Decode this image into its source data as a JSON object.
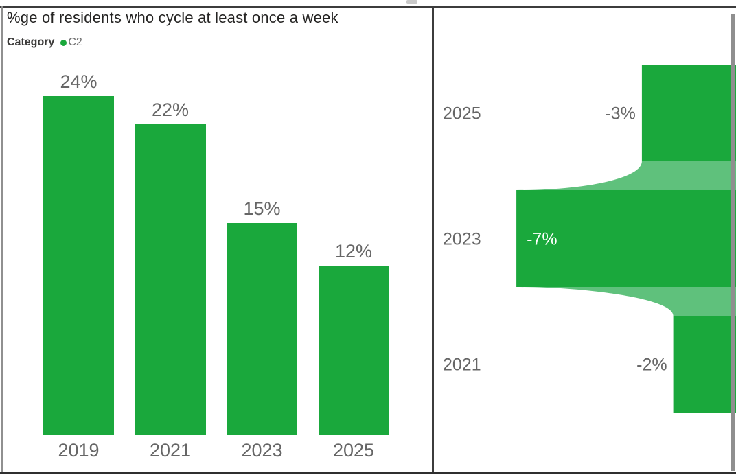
{
  "left_chart": {
    "title": "%ge of residents who cycle at least once a week",
    "legend": {
      "label": "Category",
      "item": "C2"
    },
    "bars": [
      {
        "year": "2019",
        "value": 24,
        "label": "24%"
      },
      {
        "year": "2021",
        "value": 22,
        "label": "22%"
      },
      {
        "year": "2023",
        "value": 15,
        "label": "15%"
      },
      {
        "year": "2025",
        "value": 12,
        "label": "12%"
      }
    ]
  },
  "right_chart": {
    "rows": [
      {
        "year": "2025",
        "value": -3,
        "label": "-3%",
        "label_placement": "outside"
      },
      {
        "year": "2023",
        "value": -7,
        "label": "-7%",
        "label_placement": "inside"
      },
      {
        "year": "2021",
        "value": -2,
        "label": "-2%",
        "label_placement": "outside"
      }
    ]
  },
  "colors": {
    "bar_green": "#1aa83c",
    "connector_green": "#5fc17c",
    "label_gray": "#666666",
    "inside_label_white": "#ffffff",
    "title_color": "#252423",
    "border_dark": "#3c3c3c",
    "border_light": "#909090",
    "scrollbar_gray": "#8f8f8f"
  },
  "chart_data": [
    {
      "type": "bar",
      "title": "%ge of residents who cycle at least once a week",
      "categories": [
        "2019",
        "2021",
        "2023",
        "2025"
      ],
      "values": [
        24,
        22,
        15,
        12
      ],
      "data_labels": [
        "24%",
        "22%",
        "15%",
        "12%"
      ],
      "legend_entries": [
        "C2"
      ],
      "legend_title": "Category",
      "legend_position": "top-left",
      "xlabel": "",
      "ylabel": "",
      "ylim": [
        0,
        26
      ],
      "grid": false,
      "bar_color": "#1aa83c"
    },
    {
      "type": "area",
      "subtype": "funnel-right-anchored",
      "categories": [
        "2025",
        "2023",
        "2021"
      ],
      "values": [
        -3,
        -7,
        -2
      ],
      "data_labels": [
        "-3%",
        "-7%",
        "-2%"
      ],
      "title": "",
      "xlabel": "",
      "ylabel": "",
      "grid": false,
      "bar_color": "#1aa83c",
      "connector_color": "#5fc17c"
    }
  ]
}
